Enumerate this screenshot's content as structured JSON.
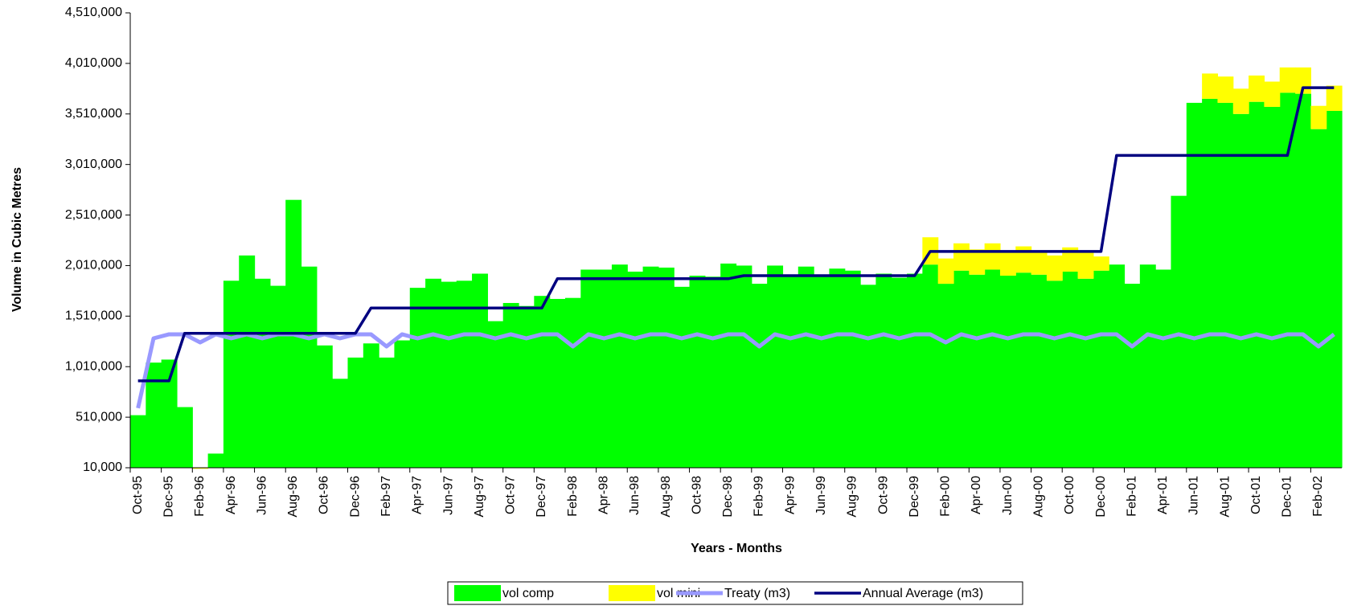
{
  "chart_data": {
    "type": "stacked_bar_line",
    "y_label": "Volume in Cubic Metres",
    "x_label": "Years - Months",
    "categories": [
      "Oct-95",
      null,
      "Dec-95",
      null,
      "Feb-96",
      null,
      "Apr-96",
      null,
      "Jun-96",
      null,
      "Aug-96",
      null,
      "Oct-96",
      null,
      "Dec-96",
      null,
      "Feb-97",
      null,
      "Apr-97",
      null,
      "Jun-97",
      null,
      "Aug-97",
      null,
      "Oct-97",
      null,
      "Dec-97",
      null,
      "Feb-98",
      null,
      "Apr-98",
      null,
      "Jun-98",
      null,
      "Aug-98",
      null,
      "Oct-98",
      null,
      "Dec-98",
      null,
      "Feb-99",
      null,
      "Apr-99",
      null,
      "Jun-99",
      null,
      "Aug-99",
      null,
      "Oct-99",
      null,
      "Dec-99",
      null,
      "Feb-00",
      null,
      "Apr-00",
      null,
      "Jun-00",
      null,
      "Aug-00",
      null,
      "Oct-00",
      null,
      "Dec-00",
      null,
      "Feb-01",
      null,
      "Apr-01",
      null,
      "Jun-01",
      null,
      "Aug-01",
      null,
      "Oct-01",
      null,
      "Dec-01",
      null,
      "Feb-02",
      null
    ],
    "series": [
      {
        "name": "vol comp",
        "kind": "bar",
        "color": "#00ff00",
        "values": [
          530000,
          1050000,
          1080000,
          610000,
          null,
          150000,
          1860000,
          2110000,
          1880000,
          1810000,
          2660000,
          2000000,
          1220000,
          890000,
          1100000,
          1240000,
          1100000,
          1270000,
          1790000,
          1880000,
          1850000,
          1860000,
          1930000,
          1460000,
          1640000,
          1610000,
          1710000,
          1680000,
          1690000,
          1970000,
          1970000,
          2020000,
          1950000,
          2000000,
          1990000,
          1800000,
          1910000,
          1900000,
          2030000,
          2010000,
          1830000,
          2010000,
          1910000,
          2000000,
          1910000,
          1980000,
          1960000,
          1820000,
          1930000,
          1890000,
          1930000,
          2020000,
          1830000,
          1960000,
          1920000,
          1970000,
          1910000,
          1940000,
          1920000,
          1860000,
          1950000,
          1880000,
          1960000,
          2020000,
          1830000,
          2020000,
          1970000,
          2700000,
          3620000,
          3660000,
          3620000,
          3510000,
          3630000,
          3580000,
          3720000,
          3710000,
          3360000,
          3540000
        ]
      },
      {
        "name": "vol mini",
        "kind": "bar",
        "color": "#ffff00",
        "values": [
          0,
          0,
          0,
          0,
          0,
          0,
          0,
          0,
          0,
          0,
          0,
          0,
          0,
          0,
          0,
          0,
          0,
          0,
          0,
          0,
          0,
          0,
          0,
          0,
          0,
          0,
          0,
          0,
          0,
          0,
          0,
          0,
          0,
          0,
          0,
          0,
          0,
          0,
          0,
          0,
          0,
          0,
          0,
          0,
          0,
          0,
          0,
          0,
          0,
          0,
          0,
          270000,
          250000,
          270000,
          250000,
          260000,
          240000,
          260000,
          230000,
          250000,
          240000,
          270000,
          140000,
          0,
          0,
          0,
          0,
          0,
          0,
          250000,
          260000,
          250000,
          260000,
          250000,
          250000,
          260000,
          230000,
          250000
        ]
      },
      {
        "name": "Treaty (m3)",
        "kind": "line",
        "color": "#9999ff",
        "values": [
          600000,
          1290000,
          1330000,
          1330000,
          1250000,
          1330000,
          1290000,
          1330000,
          1290000,
          1330000,
          1330000,
          1290000,
          1330000,
          1290000,
          1330000,
          1330000,
          1210000,
          1330000,
          1290000,
          1330000,
          1290000,
          1330000,
          1330000,
          1290000,
          1330000,
          1290000,
          1330000,
          1330000,
          1210000,
          1330000,
          1290000,
          1330000,
          1290000,
          1330000,
          1330000,
          1290000,
          1330000,
          1290000,
          1330000,
          1330000,
          1210000,
          1330000,
          1290000,
          1330000,
          1290000,
          1330000,
          1330000,
          1290000,
          1330000,
          1290000,
          1330000,
          1330000,
          1250000,
          1330000,
          1290000,
          1330000,
          1290000,
          1330000,
          1330000,
          1290000,
          1330000,
          1290000,
          1330000,
          1330000,
          1210000,
          1330000,
          1290000,
          1330000,
          1290000,
          1330000,
          1330000,
          1290000,
          1330000,
          1290000,
          1330000,
          1330000,
          1210000,
          1330000
        ]
      },
      {
        "name": "Annual Average (m3)",
        "kind": "line",
        "color": "#000080",
        "values": [
          870000,
          870000,
          870000,
          1340000,
          1340000,
          1340000,
          1340000,
          1340000,
          1340000,
          1340000,
          1340000,
          1340000,
          1340000,
          1340000,
          1340000,
          1590000,
          1590000,
          1590000,
          1590000,
          1590000,
          1590000,
          1590000,
          1590000,
          1590000,
          1590000,
          1590000,
          1590000,
          1880000,
          1880000,
          1880000,
          1880000,
          1880000,
          1880000,
          1880000,
          1880000,
          1880000,
          1880000,
          1880000,
          1880000,
          1910000,
          1910000,
          1910000,
          1910000,
          1910000,
          1910000,
          1910000,
          1910000,
          1910000,
          1910000,
          1910000,
          1910000,
          2150000,
          2150000,
          2150000,
          2150000,
          2150000,
          2150000,
          2150000,
          2150000,
          2150000,
          2150000,
          2150000,
          2150000,
          3100000,
          3100000,
          3100000,
          3100000,
          3100000,
          3100000,
          3100000,
          3100000,
          3100000,
          3100000,
          3100000,
          3100000,
          3770000,
          3770000,
          3770000
        ]
      }
    ],
    "ylim": [
      10000,
      4510000
    ],
    "yticks": [
      {
        "value": 10000,
        "label": "10,000"
      },
      {
        "value": 510000,
        "label": "510,000"
      },
      {
        "value": 1010000,
        "label": "1,010,000"
      },
      {
        "value": 1510000,
        "label": "1,510,000"
      },
      {
        "value": 2010000,
        "label": "2,010,000"
      },
      {
        "value": 2510000,
        "label": "2,510,000"
      },
      {
        "value": 3010000,
        "label": "3,010,000"
      },
      {
        "value": 3510000,
        "label": "3,510,000"
      },
      {
        "value": 4010000,
        "label": "4,010,000"
      },
      {
        "value": 4510000,
        "label": "4,510,000"
      }
    ],
    "grid": false,
    "legend": "bottom"
  }
}
